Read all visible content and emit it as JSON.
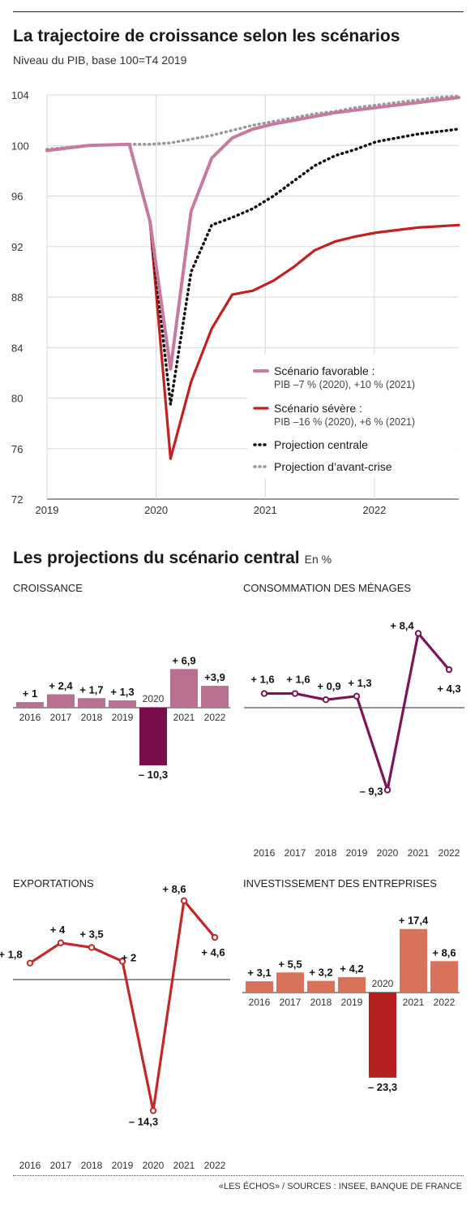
{
  "title": "La trajectoire de croissance selon les scénarios",
  "subtitle": "Niveau du PIB, base 100=T4 2019",
  "section_title": "Les projections du scénario central",
  "section_unit": "En %",
  "source": "«LES ÉCHOS» / SOURCES : INSEE, BANQUE DE FRANCE",
  "colors": {
    "favorable": "#c8799f",
    "severe": "#c42020",
    "central": "#111111",
    "precrise": "#999999",
    "croissance_bar": "#b96f90",
    "croissance_neg": "#7a0d4b",
    "consommation": "#7d1457",
    "exportations": "#c42828",
    "invest_bar": "#d9725a",
    "invest_neg": "#b3201f"
  },
  "chart_data": [
    {
      "type": "line",
      "x_ticks": [
        "2019",
        "2020",
        "2021",
        "2022"
      ],
      "ylim": [
        72,
        104
      ],
      "yticks": [
        "72",
        "76",
        "80",
        "84",
        "88",
        "92",
        "96",
        "100",
        "104"
      ],
      "grid": true,
      "legend_position": "bottom-right",
      "x": [
        0,
        0.5,
        1,
        1.5,
        2,
        2.5,
        3,
        3.5,
        4,
        4.5,
        5,
        5.5,
        6,
        6.5,
        7,
        7.5,
        8,
        8.5,
        9,
        9.5,
        10
      ],
      "series": [
        {
          "key": "favorable",
          "name": "Scénario favorable :",
          "detail": "PIB –7 % (2020), +10 % (2021)",
          "style": "solid",
          "x": [
            0,
            1,
            2,
            2.5,
            3,
            3.5,
            4,
            4.5,
            5,
            5.5,
            6,
            6.5,
            7,
            7.5,
            8,
            8.5,
            9,
            9.5,
            10
          ],
          "values": [
            99.6,
            100.0,
            100.1,
            94.0,
            82.3,
            94.8,
            99.0,
            100.6,
            101.3,
            101.7,
            102.0,
            102.3,
            102.6,
            102.8,
            103.0,
            103.2,
            103.4,
            103.6,
            103.8
          ]
        },
        {
          "key": "severe",
          "name": "Scénario sévère :",
          "detail": "PIB –16 % (2020), +6 % (2021)",
          "style": "solid",
          "x": [
            0,
            1,
            2,
            2.5,
            3,
            3.5,
            4,
            4.5,
            5,
            5.5,
            6,
            6.5,
            7,
            7.5,
            8,
            8.5,
            9,
            9.5,
            10
          ],
          "values": [
            99.6,
            100.0,
            100.1,
            94.0,
            75.2,
            81.3,
            85.5,
            88.2,
            88.5,
            89.3,
            90.4,
            91.7,
            92.4,
            92.8,
            93.1,
            93.3,
            93.5,
            93.6,
            93.7
          ]
        },
        {
          "key": "central",
          "name": "Projection centrale",
          "style": "dotted",
          "x": [
            2,
            2.5,
            3,
            3.5,
            4,
            4.5,
            5,
            5.5,
            6,
            6.5,
            7,
            7.5,
            8,
            8.5,
            9,
            9.5,
            10
          ],
          "values": [
            100.1,
            94.0,
            79.5,
            90.0,
            93.7,
            94.3,
            95.0,
            96.0,
            97.2,
            98.4,
            99.2,
            99.7,
            100.3,
            100.6,
            100.9,
            101.1,
            101.3
          ]
        },
        {
          "key": "precrise",
          "name": "Projection d’avant-crise",
          "style": "dotted",
          "x": [
            0,
            1,
            2,
            2.5,
            3,
            3.5,
            4,
            4.5,
            5,
            5.5,
            6,
            6.5,
            7,
            7.5,
            8,
            8.5,
            9,
            9.5,
            10
          ],
          "values": [
            99.7,
            100.0,
            100.1,
            100.1,
            100.2,
            100.5,
            100.8,
            101.2,
            101.6,
            101.9,
            102.2,
            102.5,
            102.7,
            103.0,
            103.2,
            103.4,
            103.6,
            103.8,
            103.9
          ]
        }
      ]
    },
    {
      "id": "croissance",
      "type": "bar",
      "title": "CROISSANCE",
      "categories": [
        "2016",
        "2017",
        "2018",
        "2019",
        "2020",
        "2021",
        "2022"
      ],
      "values": [
        1,
        2.4,
        1.7,
        1.3,
        -10.3,
        6.9,
        3.9
      ],
      "labels": [
        "+ 1",
        "+ 2,4",
        "+ 1,7",
        "+ 1,3",
        "– 10,3",
        "+ 6,9",
        "+3,9"
      ]
    },
    {
      "id": "consommation",
      "type": "line",
      "title": "CONSOMMATION DES MÉNAGES",
      "categories": [
        "2016",
        "2017",
        "2018",
        "2019",
        "2020",
        "2021",
        "2022"
      ],
      "values": [
        1.6,
        1.6,
        0.9,
        1.3,
        -9.3,
        8.4,
        4.3
      ],
      "labels": [
        "+ 1,6",
        "+ 1,6",
        "+ 0,9",
        "+ 1,3",
        "– 9,3",
        "+ 8,4",
        "+ 4,3"
      ]
    },
    {
      "id": "exportations",
      "type": "line",
      "title": "EXPORTATIONS",
      "categories": [
        "2016",
        "2017",
        "2018",
        "2019",
        "2020",
        "2021",
        "2022"
      ],
      "values": [
        1.8,
        4,
        3.5,
        2,
        -14.3,
        8.6,
        4.6
      ],
      "labels": [
        "+ 1,8",
        "+ 4",
        "+ 3,5",
        "+ 2",
        "– 14,3",
        "+ 8,6",
        "+ 4,6"
      ]
    },
    {
      "id": "investissement",
      "type": "bar",
      "title": "INVESTISSEMENT DES ENTREPRISES",
      "categories": [
        "2016",
        "2017",
        "2018",
        "2019",
        "2020",
        "2021",
        "2022"
      ],
      "values": [
        3.1,
        5.5,
        3.2,
        4.2,
        -23.3,
        17.4,
        8.6
      ],
      "labels": [
        "+ 3,1",
        "+ 5,5",
        "+ 3,2",
        "+ 4,2",
        "– 23,3",
        "+ 17,4",
        "+ 8,6"
      ]
    }
  ]
}
